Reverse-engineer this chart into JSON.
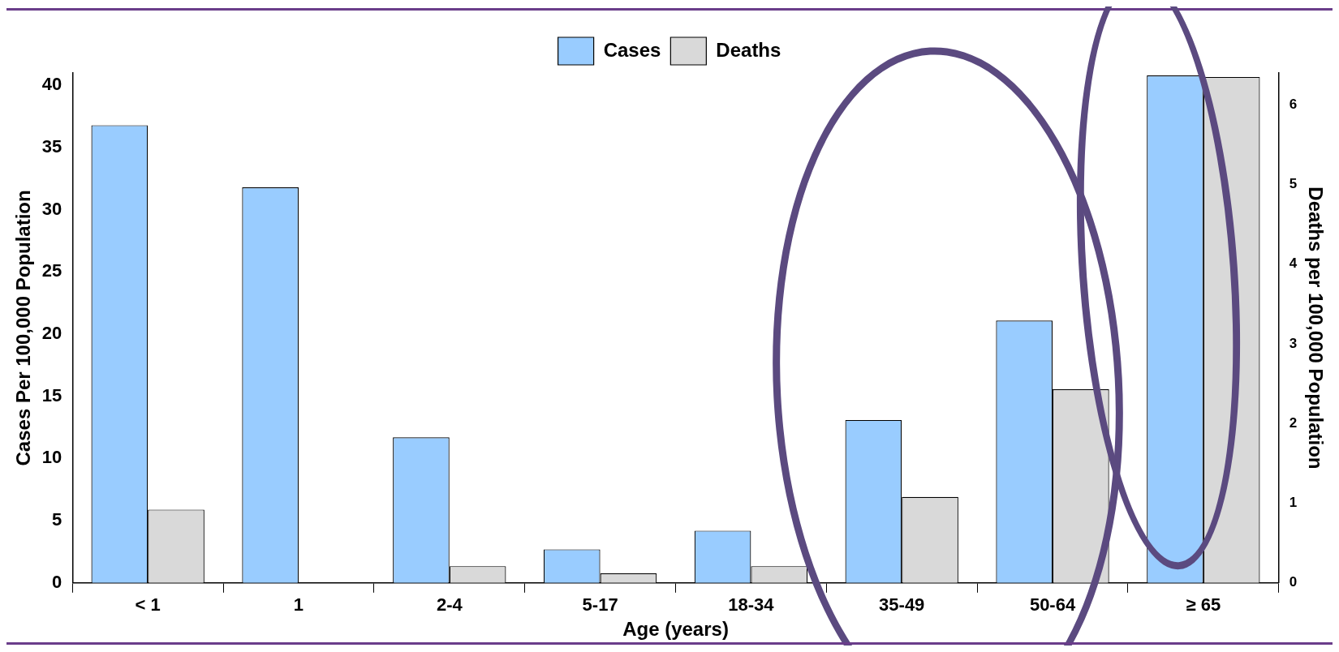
{
  "chart_data": {
    "type": "bar",
    "xlabel": "Age (years)",
    "ylabel": "Cases Per 100,000 Population",
    "y2label": "Deaths per 100,000 Population",
    "categories": [
      "< 1",
      "1",
      "2-4",
      "5-17",
      "18-34",
      "35-49",
      "50-64",
      "≥ 65"
    ],
    "series": [
      {
        "name": "Cases",
        "color": "#99ccff",
        "values": [
          36.8,
          31.8,
          11.7,
          2.7,
          4.2,
          13.1,
          21.1,
          40.8
        ]
      },
      {
        "name": "Deaths",
        "color": "#d9d9d9",
        "axis": "y2",
        "values": [
          0.92,
          0,
          0.21,
          0.12,
          0.21,
          1.08,
          2.43,
          6.35
        ]
      }
    ],
    "ylim": [
      0,
      41
    ],
    "yticks": [
      0,
      5,
      10,
      15,
      20,
      25,
      30,
      35,
      40
    ],
    "y2lim": [
      0,
      6.4
    ],
    "y2ticks": [
      0,
      1,
      2,
      3,
      4,
      5,
      6
    ],
    "legend": "top",
    "grid": false
  }
}
